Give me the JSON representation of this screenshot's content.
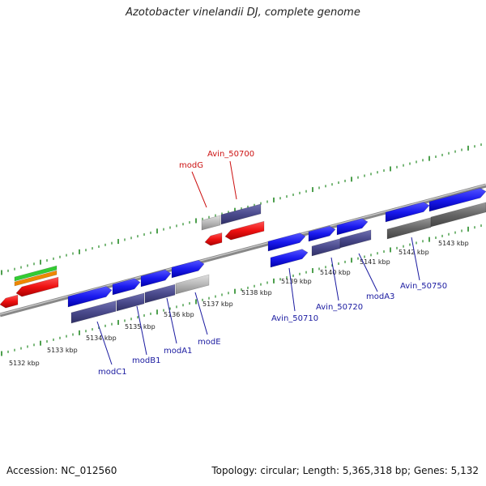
{
  "title": "Azotobacter vinelandii DJ, complete genome",
  "accession": "Accession: NC_012560",
  "topology": "Topology: circular; Length: 5,365,318 bp; Genes: 5,132",
  "colors": {
    "forward_gene": "#1a1aee",
    "forward_gene_dark": "#4a4a8c",
    "reverse_gene": "#ee1111",
    "pseudo_gene": "#b8b8b8",
    "rna_green": "#33cc33",
    "rna_orange": "#ee8800",
    "backbone": "#888888",
    "tick_green": "#228822",
    "label_blue": "#1a1aa0",
    "label_red": "#cc1111"
  },
  "scale_labels": [
    "5132 kbp",
    "5133 kbp",
    "5134 kbp",
    "5135 kbp",
    "5136 kbp",
    "5137 kbp",
    "5138 kbp",
    "5139 kbp",
    "5140 kbp",
    "5141 kbp",
    "5142 kbp",
    "5143 kbp"
  ],
  "gene_labels_forward": [
    "modC1",
    "modB1",
    "modA1",
    "modE",
    "Avin_50710",
    "Avin_50720",
    "modA3",
    "Avin_50750"
  ],
  "gene_labels_reverse": [
    "modG",
    "Avin_50700"
  ]
}
